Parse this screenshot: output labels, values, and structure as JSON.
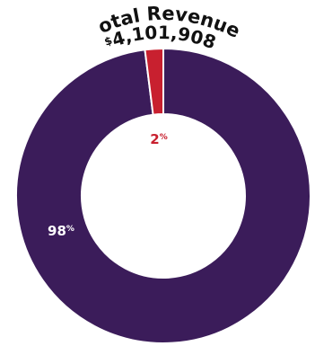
{
  "chart_data": {
    "type": "pie",
    "style": "donut",
    "title_line1": "Total Revenue",
    "currency_symbol": "$",
    "total_value": "4,101,908",
    "slices": [
      {
        "label": "98%",
        "number": "98",
        "symbol": "%",
        "value": 98,
        "color": "#3b1c5a",
        "label_color": "#ffffff"
      },
      {
        "label": "2%",
        "number": "2",
        "symbol": "%",
        "value": 2,
        "color": "#c8202f",
        "label_color": "#c8202f"
      }
    ],
    "legend": false
  }
}
